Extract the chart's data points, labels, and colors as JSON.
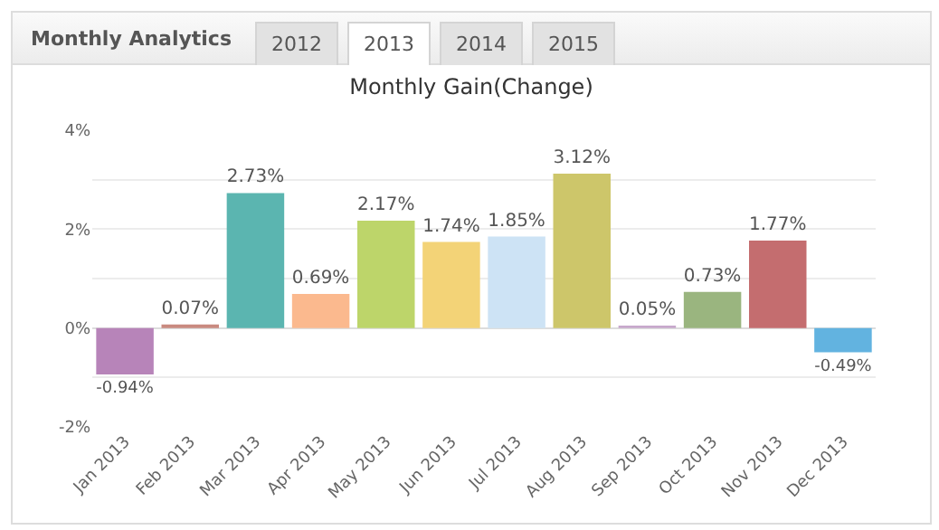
{
  "chart_data": {
    "type": "bar",
    "title": "Monthly Gain(Change)",
    "annotations": [
      "Monthly Analytics",
      "2012",
      "2013",
      "2014",
      "2015"
    ],
    "categories": [
      "Jan 2013",
      "Feb 2013",
      "Mar 2013",
      "Apr 2013",
      "May 2013",
      "Jun 2013",
      "Jul 2013",
      "Aug 2013",
      "Sep 2013",
      "Oct 2013",
      "Nov 2013",
      "Dec 2013"
    ],
    "values": [
      -0.94,
      0.07,
      2.73,
      0.69,
      2.17,
      1.74,
      1.85,
      3.12,
      0.05,
      0.73,
      1.77,
      -0.49
    ],
    "value_labels": [
      "-0.94%",
      "0.07%",
      "2.73%",
      "0.69%",
      "2.17%",
      "1.74%",
      "1.85%",
      "3.12%",
      "0.05%",
      "0.73%",
      "1.77%",
      "-0.49%"
    ],
    "colors": [
      "#b784b9",
      "#c98a80",
      "#5bb5b0",
      "#fbb98e",
      "#bdd56a",
      "#f3d377",
      "#cde3f5",
      "#cdc66a",
      "#c7a8cc",
      "#9ab57f",
      "#c46d6f",
      "#62b3e0"
    ],
    "ylim": [
      -2,
      4
    ],
    "yticks": [
      {
        "value": -2,
        "label": "-2%"
      },
      {
        "value": -1,
        "label": null
      },
      {
        "value": 0,
        "label": "0%"
      },
      {
        "value": 1,
        "label": null
      },
      {
        "value": 2,
        "label": "2%"
      },
      {
        "value": 3,
        "label": null
      },
      {
        "value": 4,
        "label": "4%"
      }
    ],
    "grid": true
  }
}
